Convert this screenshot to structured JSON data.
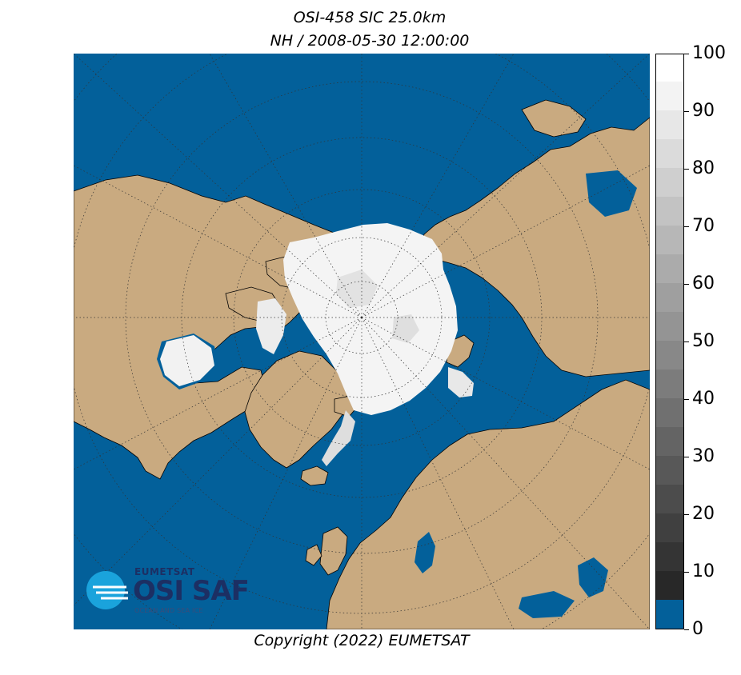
{
  "header": {
    "title_line1": "OSI-458 SIC 25.0km",
    "title_line2": "NH / 2008-05-30 12:00:00"
  },
  "map": {
    "projection": "polar stereographic",
    "hemisphere": "NH",
    "graticule": "dotted",
    "colors": {
      "ocean": "#03609a",
      "land": "#c9aa80",
      "coastline": "#000000",
      "ice_full": "#ffffff"
    }
  },
  "colorbar": {
    "ticks": [
      "0",
      "10",
      "20",
      "30",
      "40",
      "50",
      "60",
      "70",
      "80",
      "90",
      "100"
    ],
    "min": 0,
    "max": 100,
    "step": 5,
    "low_color": "#03609a"
  },
  "footer": {
    "copyright": "Copyright (2022)  EUMETSAT"
  },
  "logo": {
    "brand": "EUMETSAT",
    "product": "OSI SAF",
    "tagline": "OCEAN AND SEA ICE",
    "icon": "osisaf-wave-icon",
    "color": "#1c2f63"
  }
}
